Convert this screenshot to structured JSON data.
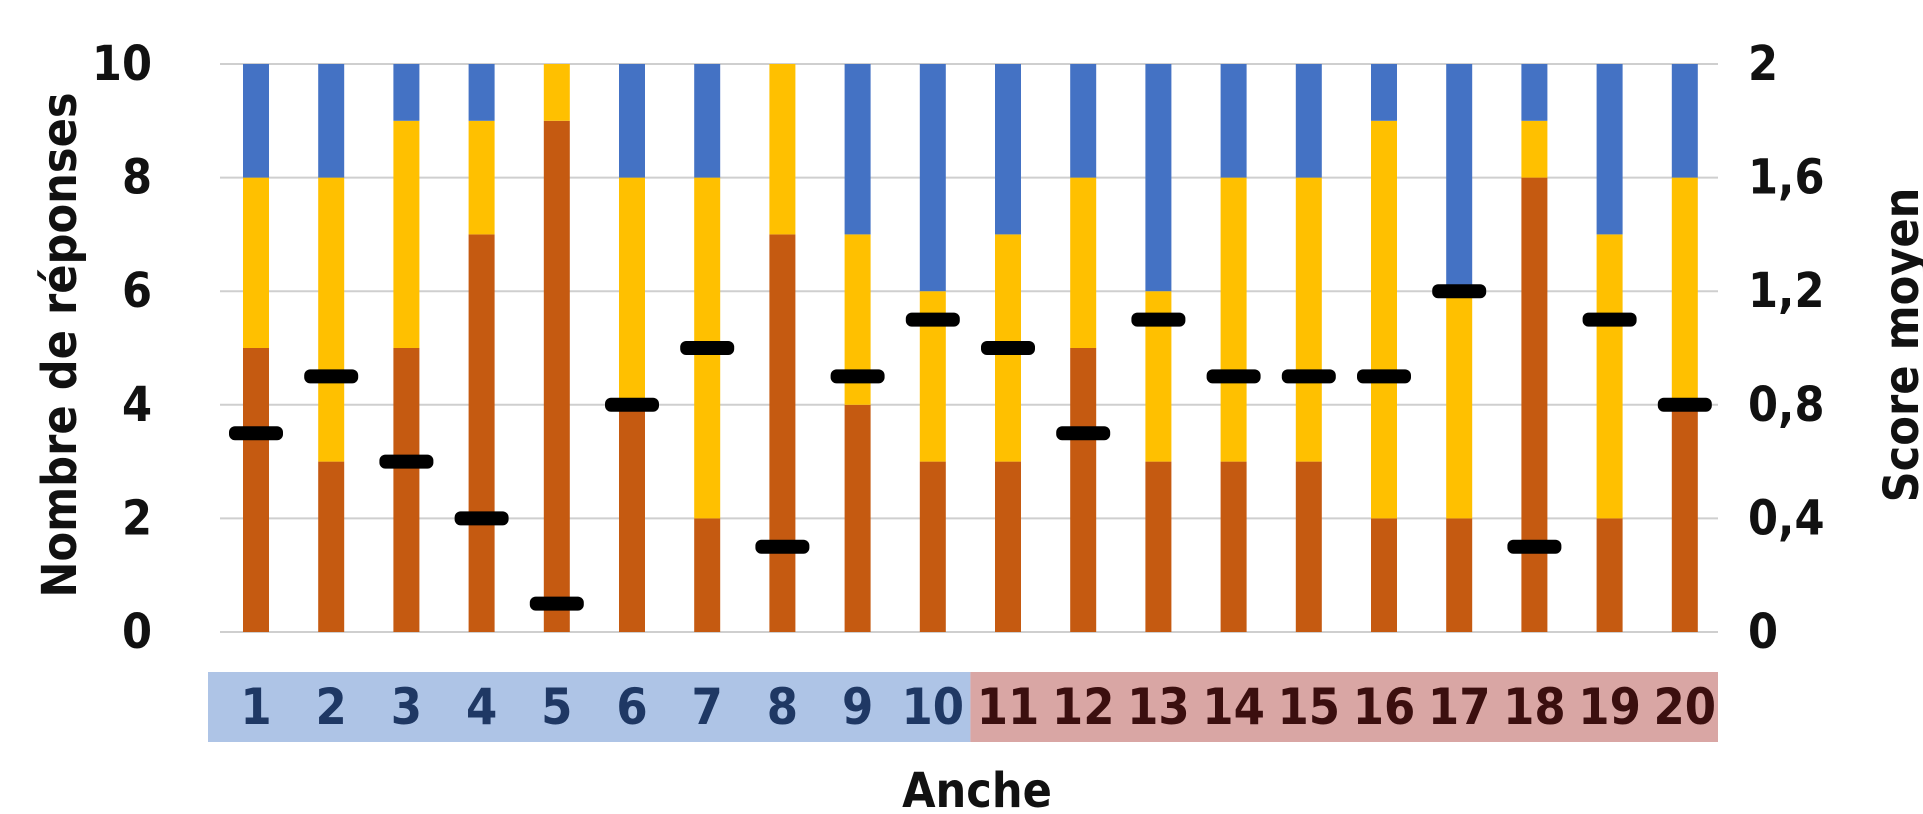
{
  "chart_data": {
    "type": "bar",
    "stacked": true,
    "title": "",
    "xlabel": "Anche",
    "ylabel": "Nombre de réponses",
    "y2label": "Score moyen",
    "ylim": [
      0,
      10
    ],
    "y2lim": [
      0,
      2
    ],
    "yticks": [
      "0",
      "2",
      "4",
      "6",
      "8",
      "10"
    ],
    "y2ticks": [
      "0",
      "0,4",
      "0,8",
      "1,2",
      "1,6",
      "2"
    ],
    "grid": true,
    "categories": [
      "1",
      "2",
      "3",
      "4",
      "5",
      "6",
      "7",
      "8",
      "9",
      "10",
      "11",
      "12",
      "13",
      "14",
      "15",
      "16",
      "17",
      "18",
      "19",
      "20"
    ],
    "category_groups": [
      {
        "from": 0,
        "to": 9,
        "color": "#aec4e6",
        "text_color": "#1f3864"
      },
      {
        "from": 10,
        "to": 19,
        "color": "#d9a6a4",
        "text_color": "#3b0f0f"
      }
    ],
    "series": [
      {
        "color": "#c55a11",
        "values": [
          5,
          3,
          5,
          7,
          9,
          4,
          2,
          7,
          4,
          3,
          3,
          5,
          3,
          3,
          3,
          2,
          2,
          8,
          2,
          4
        ]
      },
      {
        "color": "#ffc000",
        "values": [
          3,
          5,
          4,
          2,
          1,
          4,
          6,
          3,
          3,
          3,
          4,
          3,
          3,
          5,
          5,
          7,
          4,
          1,
          5,
          4
        ]
      },
      {
        "color": "#4472c4",
        "values": [
          2,
          2,
          1,
          1,
          0,
          2,
          2,
          0,
          3,
          4,
          3,
          2,
          4,
          2,
          2,
          1,
          4,
          1,
          3,
          2
        ]
      }
    ],
    "score_moyen": {
      "axis": "secondary",
      "color": "#000000",
      "values": [
        0.7,
        0.9,
        0.6,
        0.4,
        0.1,
        0.8,
        1.0,
        0.3,
        0.9,
        1.1,
        1.0,
        0.7,
        1.1,
        0.9,
        0.9,
        0.9,
        1.2,
        0.3,
        1.1,
        0.8
      ]
    }
  }
}
